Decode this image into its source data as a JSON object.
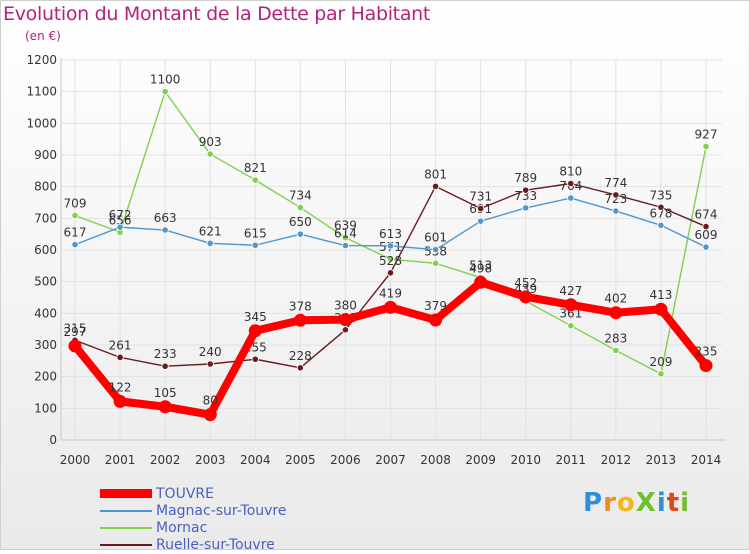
{
  "title": "Evolution du Montant de la Dette par Habitant",
  "unit_label": "(en €)",
  "brand": "ProXiti",
  "chart_data": {
    "type": "line",
    "title": "Evolution du Montant de la Dette par Habitant",
    "ylabel": "(en €)",
    "xlabel": "",
    "x": [
      2000,
      2001,
      2002,
      2003,
      2004,
      2005,
      2006,
      2007,
      2008,
      2009,
      2010,
      2011,
      2012,
      2013,
      2014
    ],
    "ylim": [
      0,
      1200
    ],
    "yticks": [
      0,
      100,
      200,
      300,
      400,
      500,
      600,
      700,
      800,
      900,
      1000,
      1100,
      1200
    ],
    "grid": true,
    "legend": "bottom-left",
    "series": [
      {
        "name": "Mornac",
        "color": "#7fd14d",
        "values": [
          709,
          656,
          1100,
          903,
          821,
          734,
          639,
          571,
          558,
          513,
          439,
          361,
          283,
          209,
          927
        ]
      },
      {
        "name": "Magnac-sur-Touvre",
        "color": "#4f96cf",
        "values": [
          617,
          672,
          663,
          621,
          615,
          650,
          614,
          613,
          601,
          691,
          733,
          764,
          723,
          678,
          609
        ]
      },
      {
        "name": "Ruelle-sur-Touvre",
        "color": "#6b1a1f",
        "values": [
          315,
          261,
          233,
          240,
          255,
          228,
          348,
          528,
          801,
          731,
          789,
          810,
          774,
          735,
          674
        ]
      },
      {
        "name": "TOUVRE",
        "color": "#ff0000",
        "values": [
          297,
          122,
          105,
          80,
          345,
          378,
          380,
          419,
          379,
          498,
          452,
          427,
          402,
          413,
          235
        ]
      }
    ]
  },
  "legend": [
    {
      "name": "TOUVRE",
      "color": "#ff0000"
    },
    {
      "name": "Magnac-sur-Touvre",
      "color": "#4f96cf"
    },
    {
      "name": "Mornac",
      "color": "#7fd14d"
    },
    {
      "name": "Ruelle-sur-Touvre",
      "color": "#6b1a1f"
    }
  ]
}
